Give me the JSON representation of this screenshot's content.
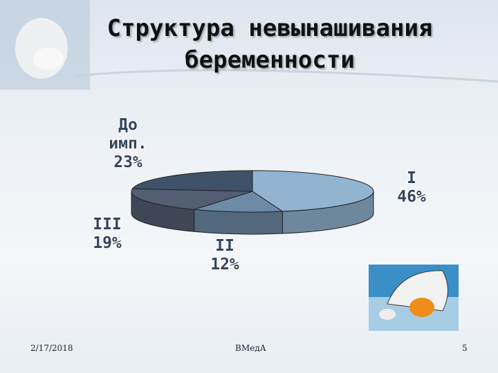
{
  "chart_data": {
    "type": "pie3d",
    "title": "Структура невынашивания беременности",
    "categories": [
      "I",
      "II",
      "III",
      "До имп."
    ],
    "values": [
      46,
      12,
      19,
      23
    ],
    "value_labels": [
      "46%",
      "12%",
      "19%",
      "23%"
    ],
    "colors": [
      "#93b4d0",
      "#6d8aa6",
      "#525f72",
      "#3f5269"
    ]
  },
  "footer": {
    "date": "2/17/2018",
    "center": "ВМедА",
    "page": "5"
  }
}
